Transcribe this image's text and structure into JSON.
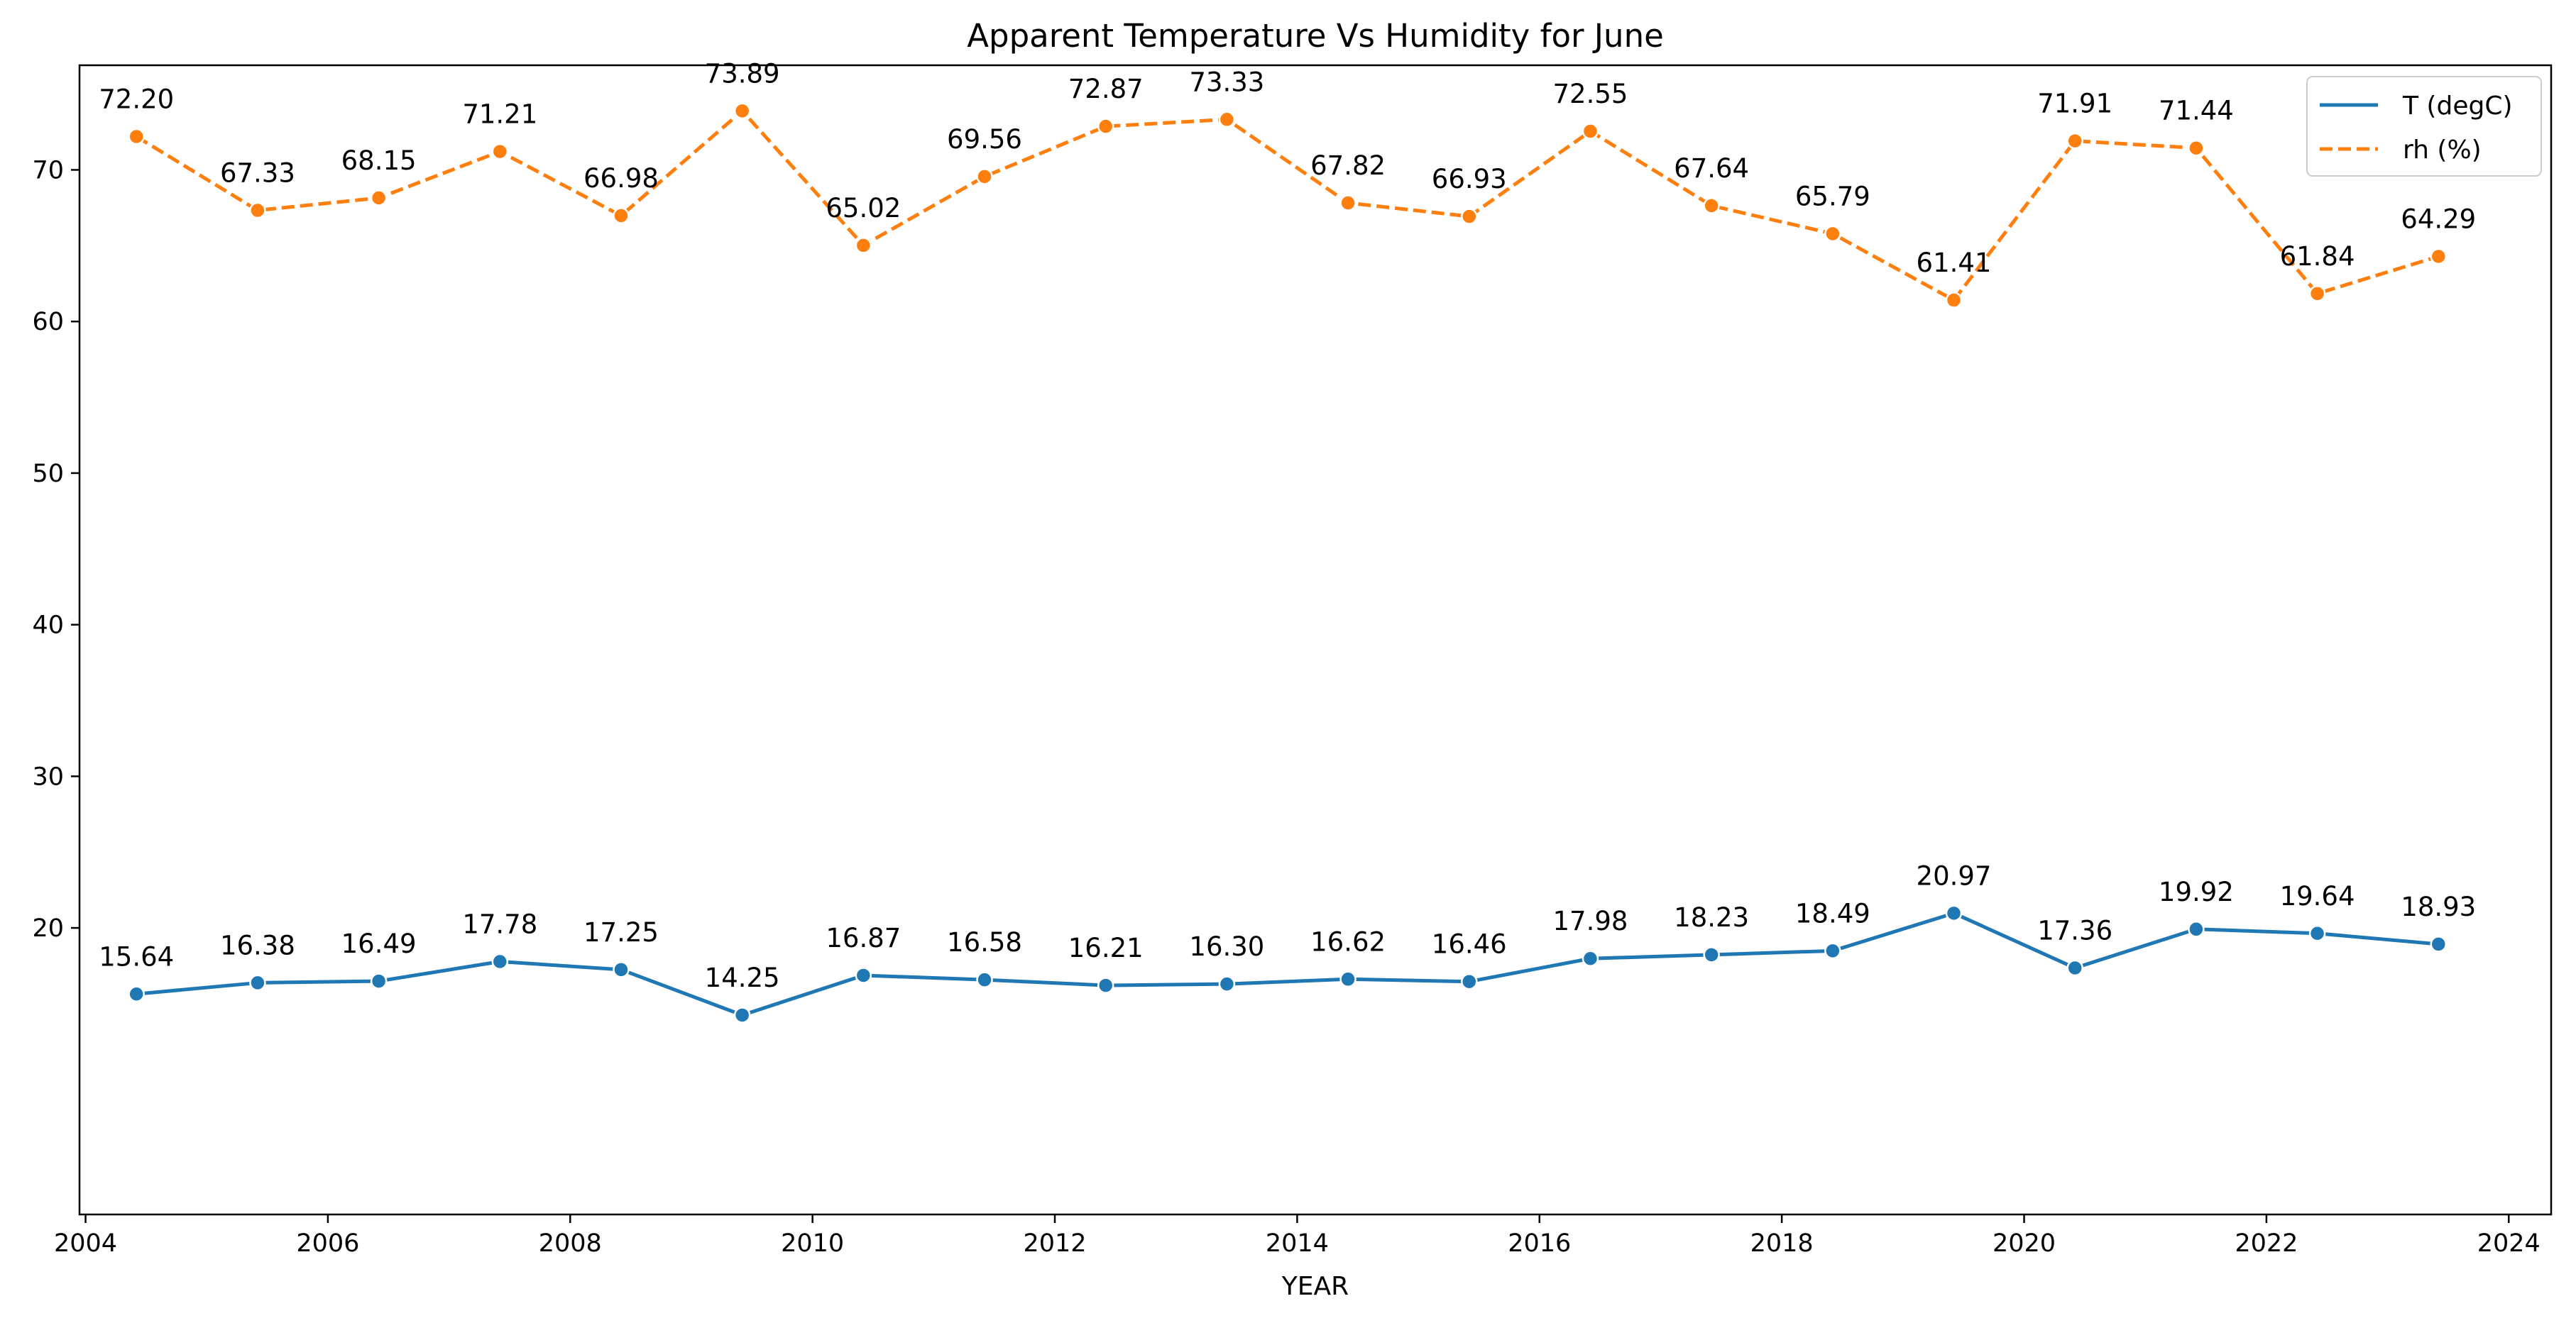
{
  "chart_data": {
    "type": "line",
    "title": "Apparent Temperature Vs Humidity for June",
    "xlabel": "YEAR",
    "ylabel": "",
    "xlim": [
      2003.95,
      2024.35
    ],
    "ylim": [
      1.1,
      76.9
    ],
    "x_ticks": [
      2004,
      2006,
      2008,
      2010,
      2012,
      2014,
      2016,
      2018,
      2020,
      2022,
      2024
    ],
    "y_ticks": [
      20,
      30,
      40,
      50,
      60,
      70
    ],
    "grid": false,
    "legend_position": "top-right",
    "x": [
      2004.42,
      2005.42,
      2006.42,
      2007.42,
      2008.42,
      2009.42,
      2010.42,
      2011.42,
      2012.42,
      2013.42,
      2014.42,
      2015.42,
      2016.42,
      2017.42,
      2018.42,
      2019.42,
      2020.42,
      2021.42,
      2022.42,
      2023.42
    ],
    "series": [
      {
        "name": "T (degC)",
        "color": "#1f77b4",
        "dash": "solid",
        "values": [
          15.64,
          16.38,
          16.49,
          17.78,
          17.25,
          14.25,
          16.87,
          16.58,
          16.21,
          16.3,
          16.62,
          16.46,
          17.98,
          18.23,
          18.49,
          20.97,
          17.36,
          19.92,
          19.64,
          18.93
        ],
        "labels": [
          "15.64",
          "16.38",
          "16.49",
          "17.78",
          "17.25",
          "14.25",
          "16.87",
          "16.58",
          "16.21",
          "16.30",
          "16.62",
          "16.46",
          "17.98",
          "18.23",
          "18.49",
          "20.97",
          "17.36",
          "19.92",
          "19.64",
          "18.93"
        ]
      },
      {
        "name": "rh (%)",
        "color": "#ff7f0e",
        "dash": "dashed",
        "values": [
          72.2,
          67.33,
          68.15,
          71.21,
          66.98,
          73.89,
          65.02,
          69.56,
          72.87,
          73.33,
          67.82,
          66.93,
          72.55,
          67.64,
          65.79,
          61.41,
          71.91,
          71.44,
          61.84,
          64.29
        ],
        "labels": [
          "72.20",
          "67.33",
          "68.15",
          "71.21",
          "66.98",
          "73.89",
          "65.02",
          "69.56",
          "72.87",
          "73.33",
          "67.82",
          "66.93",
          "72.55",
          "67.64",
          "65.79",
          "61.41",
          "71.91",
          "71.44",
          "61.84",
          "64.29"
        ]
      }
    ]
  }
}
